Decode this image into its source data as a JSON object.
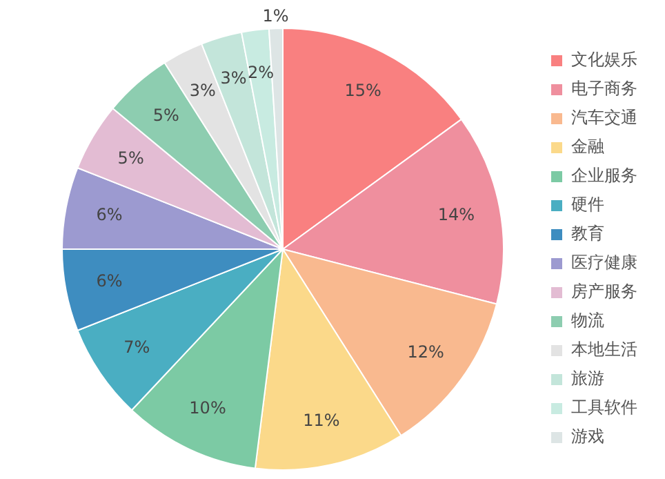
{
  "chart_data": {
    "type": "pie",
    "categories": [
      "文化娱乐",
      "电子商务",
      "汽车交通",
      "金融",
      "企业服务",
      "硬件",
      "教育",
      "医疗健康",
      "房产服务",
      "物流",
      "本地生活",
      "旅游",
      "工具软件",
      "游戏"
    ],
    "values": [
      15,
      14,
      12,
      11,
      10,
      7,
      6,
      6,
      5,
      5,
      3,
      3,
      2,
      1
    ],
    "colors": [
      "#f98080",
      "#ef8f9e",
      "#f9b98f",
      "#fbd98a",
      "#7ccaa4",
      "#4aaec2",
      "#3e8dc0",
      "#9c9ad0",
      "#e3bcd3",
      "#8dcdb0",
      "#e3e3e3",
      "#c3e5da",
      "#c8ebe1",
      "#dde5e5"
    ],
    "value_labels": [
      "15%",
      "14%",
      "12%",
      "11%",
      "10%",
      "7%",
      "6%",
      "6%",
      "5%",
      "5%",
      "3%",
      "3%",
      "2%",
      "1%"
    ],
    "legend": "right"
  }
}
